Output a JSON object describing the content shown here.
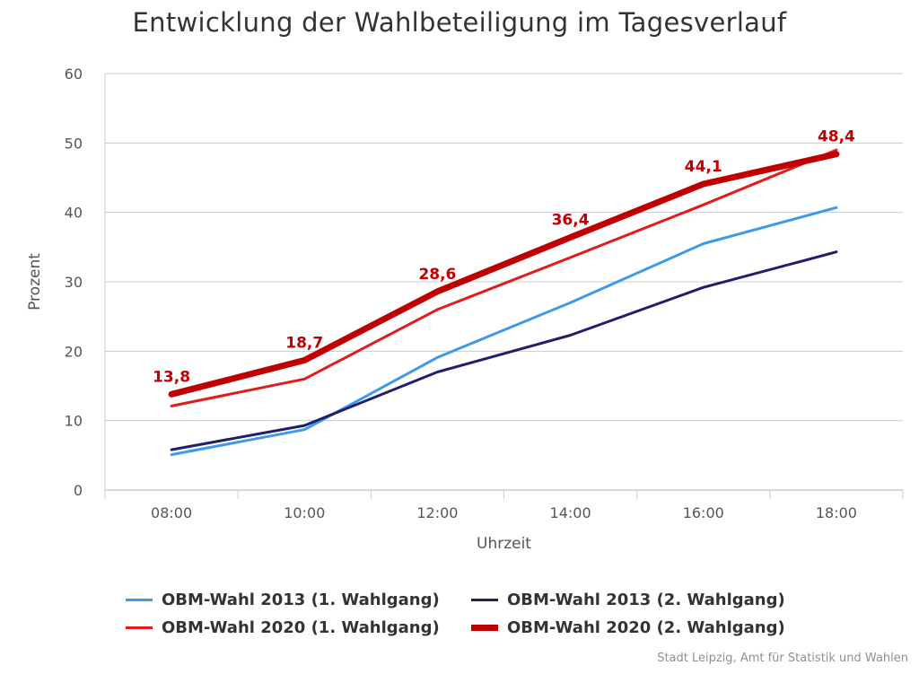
{
  "title": "Entwicklung der Wahlbeteiligung im Tagesverlauf",
  "credits": "Stadt Leipzig, Amt für Statistik und Wahlen",
  "colors": {
    "light_blue": "#3d9ae8",
    "dark_blue": "#1f1f6b",
    "red": "#e01c1c",
    "dark_red": "#c00000",
    "grid": "#c8ccd6",
    "axis_text": "#555555"
  },
  "chart_data": {
    "type": "line",
    "xlabel": "Uhrzeit",
    "ylabel": "Prozent",
    "ylim": [
      0,
      60
    ],
    "yticks": [
      0,
      10,
      20,
      30,
      40,
      50,
      60
    ],
    "categories": [
      "08:00",
      "10:00",
      "12:00",
      "14:00",
      "16:00",
      "18:00"
    ],
    "grid": true,
    "legend_position": "bottom",
    "series": [
      {
        "name": "OBM-Wahl 2013 (1. Wahlgang)",
        "values": [
          5.1,
          8.7,
          19.1,
          27.0,
          35.5,
          40.7
        ],
        "color": "#3d9ae8",
        "width": 3
      },
      {
        "name": "OBM-Wahl 2013 (2. Wahlgang)",
        "values": [
          5.8,
          9.3,
          17.0,
          22.3,
          29.2,
          34.3
        ],
        "color": "#1f1f6b",
        "width": 3
      },
      {
        "name": "OBM-Wahl 2020 (1. Wahlgang)",
        "values": [
          12.1,
          16.0,
          26.0,
          33.5,
          41.1,
          49.0
        ],
        "color": "#e01c1c",
        "width": 3
      },
      {
        "name": "OBM-Wahl 2020 (2. Wahlgang)",
        "values": [
          13.8,
          18.7,
          28.6,
          36.4,
          44.1,
          48.4
        ],
        "color": "#c00000",
        "width": 7,
        "data_labels": [
          "13,8",
          "18,7",
          "28,6",
          "36,4",
          "44,1",
          "48,4"
        ]
      }
    ]
  }
}
